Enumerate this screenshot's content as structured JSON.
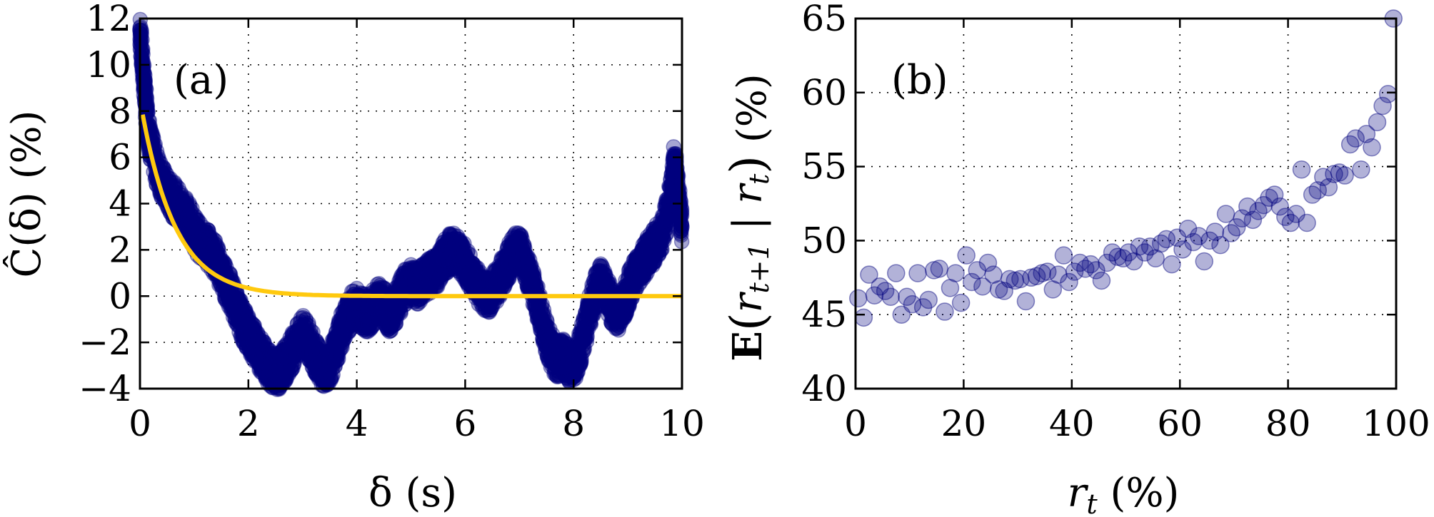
{
  "colors": {
    "scatter": "#00007f",
    "fit": "#ffc90e"
  },
  "chart_data": [
    {
      "type": "scatter",
      "panel_label": "(a)",
      "xlabel": "δ (s)",
      "ylabel": "Ĉ(δ) (%)",
      "xlim": [
        0,
        10
      ],
      "ylim": [
        -4,
        12
      ],
      "xticks": [
        0,
        2,
        4,
        6,
        8,
        10
      ],
      "yticks": [
        -4,
        -2,
        0,
        2,
        4,
        6,
        8,
        10,
        12
      ],
      "ytick_labels": [
        "−4",
        "−2",
        "0",
        "2",
        "4",
        "6",
        "8",
        "10",
        "12"
      ],
      "grid": true,
      "series": [
        {
          "kind": "scatter",
          "values": [
            [
              0.0,
              11.5
            ],
            [
              0.05,
              10.0
            ],
            [
              0.1,
              8.5
            ],
            [
              0.15,
              7.3
            ],
            [
              0.2,
              6.5
            ],
            [
              0.3,
              5.6
            ],
            [
              0.4,
              5.0
            ],
            [
              0.5,
              4.5
            ],
            [
              0.6,
              4.2
            ],
            [
              0.7,
              4.0
            ],
            [
              0.8,
              3.7
            ],
            [
              0.9,
              3.3
            ],
            [
              1.0,
              2.8
            ],
            [
              1.1,
              2.4
            ],
            [
              1.2,
              2.2
            ],
            [
              1.3,
              2.0
            ],
            [
              1.4,
              1.6
            ],
            [
              1.5,
              1.0
            ],
            [
              1.6,
              0.5
            ],
            [
              1.7,
              0.0
            ],
            [
              1.8,
              -0.6
            ],
            [
              1.9,
              -1.2
            ],
            [
              2.0,
              -1.6
            ],
            [
              2.1,
              -2.0
            ],
            [
              2.2,
              -2.4
            ],
            [
              2.3,
              -2.8
            ],
            [
              2.4,
              -3.1
            ],
            [
              2.5,
              -3.3
            ],
            [
              2.6,
              -3.2
            ],
            [
              2.7,
              -2.8
            ],
            [
              2.8,
              -2.4
            ],
            [
              2.9,
              -2.0
            ],
            [
              3.0,
              -1.6
            ],
            [
              3.1,
              -1.9
            ],
            [
              3.2,
              -2.4
            ],
            [
              3.3,
              -2.9
            ],
            [
              3.4,
              -3.2
            ],
            [
              3.5,
              -3.0
            ],
            [
              3.6,
              -2.4
            ],
            [
              3.7,
              -1.6
            ],
            [
              3.8,
              -1.0
            ],
            [
              3.9,
              -0.6
            ],
            [
              4.0,
              -0.4
            ],
            [
              4.1,
              -0.6
            ],
            [
              4.2,
              -0.8
            ],
            [
              4.3,
              -0.5
            ],
            [
              4.4,
              -0.2
            ],
            [
              4.5,
              -0.4
            ],
            [
              4.6,
              -0.8
            ],
            [
              4.7,
              -0.5
            ],
            [
              4.8,
              0.0
            ],
            [
              4.9,
              0.4
            ],
            [
              5.0,
              0.6
            ],
            [
              5.1,
              0.4
            ],
            [
              5.2,
              0.6
            ],
            [
              5.3,
              0.8
            ],
            [
              5.4,
              1.0
            ],
            [
              5.5,
              1.2
            ],
            [
              5.6,
              1.6
            ],
            [
              5.7,
              1.9
            ],
            [
              5.8,
              2.0
            ],
            [
              5.9,
              1.8
            ],
            [
              6.0,
              1.4
            ],
            [
              6.1,
              1.0
            ],
            [
              6.2,
              0.6
            ],
            [
              6.3,
              0.2
            ],
            [
              6.4,
              0.0
            ],
            [
              6.5,
              0.2
            ],
            [
              6.6,
              0.6
            ],
            [
              6.7,
              1.0
            ],
            [
              6.8,
              1.5
            ],
            [
              6.9,
              1.9
            ],
            [
              7.0,
              2.0
            ],
            [
              7.1,
              1.5
            ],
            [
              7.2,
              0.8
            ],
            [
              7.3,
              0.0
            ],
            [
              7.4,
              -0.9
            ],
            [
              7.5,
              -1.8
            ],
            [
              7.6,
              -2.4
            ],
            [
              7.7,
              -2.8
            ],
            [
              7.8,
              -2.6
            ],
            [
              7.9,
              -2.9
            ],
            [
              8.0,
              -3.0
            ],
            [
              8.1,
              -2.4
            ],
            [
              8.2,
              -1.6
            ],
            [
              8.3,
              -0.6
            ],
            [
              8.4,
              0.2
            ],
            [
              8.5,
              0.6
            ],
            [
              8.6,
              0.2
            ],
            [
              8.7,
              -0.4
            ],
            [
              8.8,
              -0.8
            ],
            [
              8.9,
              -0.4
            ],
            [
              9.0,
              0.2
            ],
            [
              9.1,
              0.8
            ],
            [
              9.2,
              1.2
            ],
            [
              9.3,
              1.6
            ],
            [
              9.4,
              1.9
            ],
            [
              9.5,
              2.2
            ],
            [
              9.6,
              2.6
            ],
            [
              9.7,
              3.3
            ],
            [
              9.8,
              4.4
            ],
            [
              9.85,
              5.8
            ],
            [
              9.9,
              5.2
            ],
            [
              9.95,
              4.0
            ],
            [
              10.0,
              3.0
            ]
          ]
        },
        {
          "kind": "line",
          "function": "exponential_decay",
          "amplitude": 8.5,
          "decay_rate": 1.6,
          "x_range": [
            0.05,
            10
          ]
        }
      ]
    },
    {
      "type": "scatter",
      "panel_label": "(b)",
      "xlabel": "r_t (%)",
      "ylabel": "E(r_{t+1} | r_t) (%)",
      "xlim": [
        0,
        100
      ],
      "ylim": [
        40,
        65
      ],
      "xticks": [
        0,
        20,
        40,
        60,
        80,
        100
      ],
      "yticks": [
        40,
        45,
        50,
        55,
        60,
        65
      ],
      "grid": true,
      "points": [
        [
          0.5,
          46.1
        ],
        [
          1.5,
          44.8
        ],
        [
          2.5,
          47.7
        ],
        [
          3.5,
          46.3
        ],
        [
          4.5,
          46.9
        ],
        [
          5.5,
          46.6
        ],
        [
          6.5,
          46.2
        ],
        [
          7.5,
          47.8
        ],
        [
          8.5,
          45.0
        ],
        [
          9.5,
          46.2
        ],
        [
          10.5,
          45.7
        ],
        [
          11.5,
          47.8
        ],
        [
          12.5,
          45.5
        ],
        [
          13.5,
          46.0
        ],
        [
          14.5,
          48.0
        ],
        [
          15.5,
          48.1
        ],
        [
          16.5,
          45.2
        ],
        [
          17.5,
          46.8
        ],
        [
          18.5,
          47.8
        ],
        [
          19.5,
          45.8
        ],
        [
          20.5,
          49.0
        ],
        [
          21.5,
          47.2
        ],
        [
          22.5,
          48.0
        ],
        [
          23.5,
          46.9
        ],
        [
          24.5,
          48.5
        ],
        [
          25.5,
          47.7
        ],
        [
          26.5,
          46.7
        ],
        [
          27.5,
          46.6
        ],
        [
          28.5,
          47.4
        ],
        [
          29.5,
          47.3
        ],
        [
          30.5,
          47.4
        ],
        [
          31.5,
          45.9
        ],
        [
          32.5,
          47.5
        ],
        [
          33.5,
          47.6
        ],
        [
          34.5,
          47.8
        ],
        [
          35.5,
          47.9
        ],
        [
          36.5,
          46.7
        ],
        [
          37.5,
          47.7
        ],
        [
          38.5,
          49.0
        ],
        [
          39.5,
          47.2
        ],
        [
          40.5,
          47.9
        ],
        [
          41.5,
          48.5
        ],
        [
          42.5,
          48.1
        ],
        [
          43.5,
          48.4
        ],
        [
          44.5,
          48.0
        ],
        [
          45.5,
          47.3
        ],
        [
          46.5,
          48.5
        ],
        [
          47.5,
          49.2
        ],
        [
          48.5,
          48.9
        ],
        [
          49.5,
          48.8
        ],
        [
          50.5,
          49.2
        ],
        [
          51.5,
          48.6
        ],
        [
          52.5,
          49.6
        ],
        [
          53.5,
          49.2
        ],
        [
          54.5,
          49.6
        ],
        [
          55.5,
          48.8
        ],
        [
          56.5,
          49.8
        ],
        [
          57.5,
          50.1
        ],
        [
          58.5,
          48.4
        ],
        [
          59.5,
          50.2
        ],
        [
          60.5,
          49.4
        ],
        [
          61.5,
          50.8
        ],
        [
          62.5,
          49.9
        ],
        [
          63.5,
          50.3
        ],
        [
          64.5,
          48.6
        ],
        [
          65.5,
          50.0
        ],
        [
          66.5,
          50.6
        ],
        [
          67.5,
          49.7
        ],
        [
          68.5,
          51.8
        ],
        [
          69.5,
          50.5
        ],
        [
          70.5,
          50.9
        ],
        [
          71.5,
          51.5
        ],
        [
          72.5,
          52.3
        ],
        [
          73.5,
          51.4
        ],
        [
          74.5,
          52.0
        ],
        [
          75.5,
          52.4
        ],
        [
          76.5,
          52.9
        ],
        [
          77.5,
          53.1
        ],
        [
          78.5,
          52.3
        ],
        [
          79.5,
          51.6
        ],
        [
          80.5,
          51.2
        ],
        [
          81.5,
          51.8
        ],
        [
          82.5,
          54.8
        ],
        [
          83.5,
          51.2
        ],
        [
          84.5,
          53.1
        ],
        [
          85.5,
          53.4
        ],
        [
          86.5,
          54.3
        ],
        [
          87.5,
          53.6
        ],
        [
          88.5,
          54.5
        ],
        [
          89.5,
          54.6
        ],
        [
          90.5,
          54.4
        ],
        [
          91.5,
          56.5
        ],
        [
          92.5,
          56.9
        ],
        [
          93.5,
          54.8
        ],
        [
          94.5,
          57.2
        ],
        [
          95.5,
          56.3
        ],
        [
          96.5,
          58.0
        ],
        [
          97.5,
          59.1
        ],
        [
          98.5,
          59.9
        ],
        [
          99.5,
          65.0
        ]
      ]
    }
  ]
}
